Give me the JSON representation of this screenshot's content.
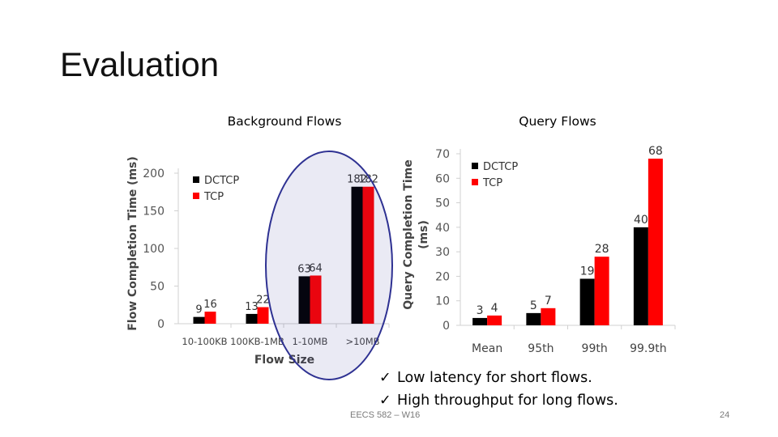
{
  "slide": {
    "title": "Evaluation",
    "bullets": [
      "Low latency for short flows.",
      "High throughput for long flows."
    ],
    "footer": "EECS 582 – W16",
    "page_number": "24",
    "highlight_color": "#2e3192"
  },
  "chart_data": [
    {
      "type": "bar",
      "title": "Background Flows",
      "xlabel": "Flow Size",
      "ylabel": "Flow Completion Time (ms)",
      "categories": [
        "10-100KB",
        "100KB-1MB",
        "1-10MB",
        ">10MB"
      ],
      "series": [
        {
          "name": "DCTCP",
          "color": "#000000",
          "values": [
            9,
            13,
            63,
            182
          ]
        },
        {
          "name": "TCP",
          "color": "#ff0000",
          "values": [
            16,
            22,
            64,
            182
          ]
        }
      ],
      "ylim": [
        0,
        200
      ],
      "yticks": [
        0,
        50,
        100,
        150,
        200
      ],
      "grid": false,
      "legend": "top-left"
    },
    {
      "type": "bar",
      "title": "Query Flows",
      "xlabel": "",
      "ylabel": "Query Completion Time (ms)",
      "categories": [
        "Mean",
        "95th",
        "99th",
        "99.9th"
      ],
      "series": [
        {
          "name": "DCTCP",
          "color": "#000000",
          "values": [
            3,
            5,
            19,
            40
          ]
        },
        {
          "name": "TCP",
          "color": "#ff0000",
          "values": [
            4,
            7,
            28,
            68
          ]
        }
      ],
      "ylim": [
        0,
        70
      ],
      "yticks": [
        0,
        10,
        20,
        30,
        40,
        50,
        60,
        70
      ],
      "grid": false,
      "legend": "top-left"
    }
  ]
}
